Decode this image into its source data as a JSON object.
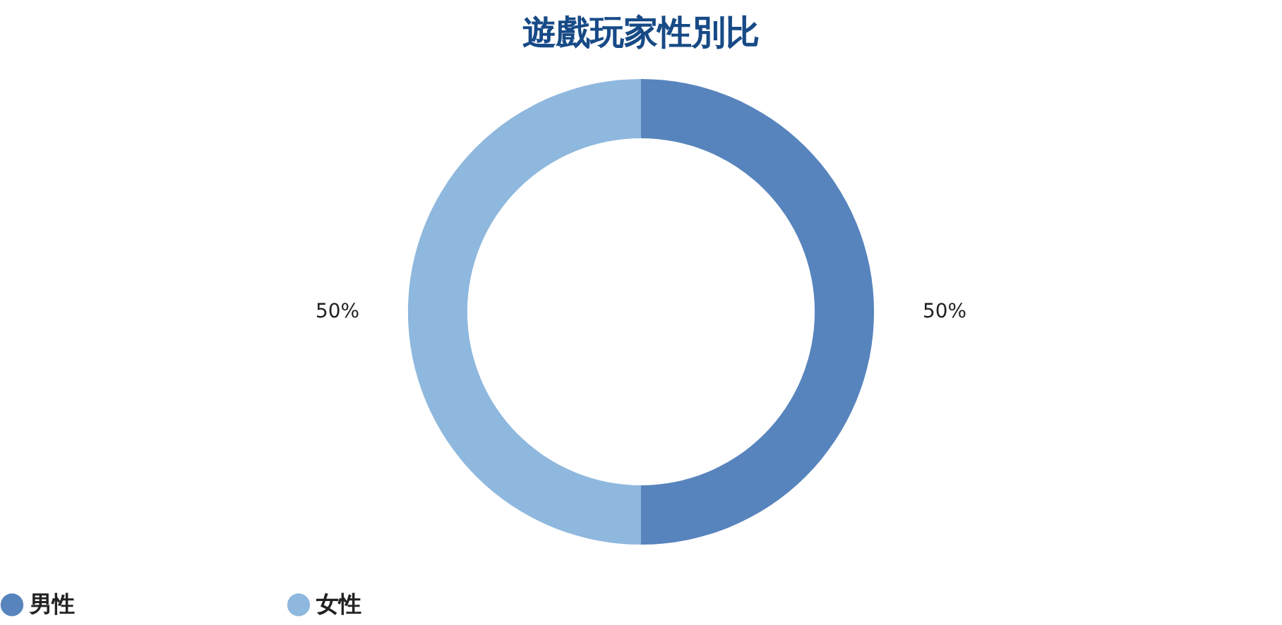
{
  "chart_data": {
    "type": "donut",
    "title": "遊戲玩家性別比",
    "categories": [
      "男性",
      "女性"
    ],
    "values": [
      50,
      50
    ],
    "colors": [
      "#5784bd",
      "#8fb8de"
    ],
    "value_labels": [
      "50%",
      "50%"
    ],
    "legend": "bottom"
  }
}
